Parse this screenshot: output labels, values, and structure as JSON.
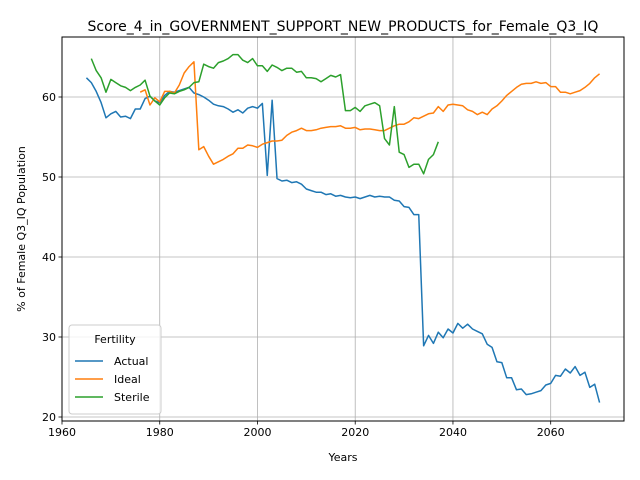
{
  "chart_data": {
    "type": "line",
    "title": "Score_4_in_GOVERNMENT_SUPPORT_NEW_PRODUCTS_for_Female_Q3_IQ",
    "xlabel": "Years",
    "ylabel": "% of Female Q3_IQ Population",
    "xlim": [
      1960,
      2075
    ],
    "ylim": [
      19.5,
      67.5
    ],
    "xticks": [
      1960,
      1980,
      2000,
      2020,
      2040,
      2060
    ],
    "yticks": [
      20,
      30,
      40,
      50,
      60
    ],
    "grid": true,
    "legend": {
      "title": "Fertility",
      "placement": "lower-left"
    },
    "series": [
      {
        "name": "Actual",
        "color": "#1f77b4",
        "points": [
          [
            1965,
            62.4
          ],
          [
            1966,
            61.8
          ],
          [
            1967,
            60.7
          ],
          [
            1968,
            59.3
          ],
          [
            1969,
            57.4
          ],
          [
            1970,
            57.9
          ],
          [
            1971,
            58.2
          ],
          [
            1972,
            57.5
          ],
          [
            1973,
            57.6
          ],
          [
            1974,
            57.3
          ],
          [
            1975,
            58.5
          ],
          [
            1976,
            58.5
          ],
          [
            1977,
            59.8
          ],
          [
            1978,
            60.1
          ],
          [
            1979,
            59.5
          ],
          [
            1980,
            59.3
          ],
          [
            1981,
            60.2
          ],
          [
            1982,
            60.7
          ],
          [
            1983,
            60.6
          ],
          [
            1984,
            60.8
          ],
          [
            1985,
            61.0
          ],
          [
            1986,
            61.2
          ],
          [
            1987,
            60.5
          ],
          [
            1988,
            60.3
          ],
          [
            1989,
            60.0
          ],
          [
            1990,
            59.6
          ],
          [
            1991,
            59.1
          ],
          [
            1992,
            58.9
          ],
          [
            1993,
            58.8
          ],
          [
            1994,
            58.5
          ],
          [
            1995,
            58.1
          ],
          [
            1996,
            58.4
          ],
          [
            1997,
            58.0
          ],
          [
            1998,
            58.6
          ],
          [
            1999,
            58.8
          ],
          [
            2000,
            58.6
          ],
          [
            2001,
            59.2
          ],
          [
            2002,
            50.2
          ],
          [
            2003,
            59.6
          ],
          [
            2004,
            49.8
          ],
          [
            2005,
            49.5
          ],
          [
            2006,
            49.6
          ],
          [
            2007,
            49.3
          ],
          [
            2008,
            49.4
          ],
          [
            2009,
            49.1
          ],
          [
            2010,
            48.5
          ],
          [
            2011,
            48.3
          ],
          [
            2012,
            48.1
          ],
          [
            2013,
            48.1
          ],
          [
            2014,
            47.8
          ],
          [
            2015,
            47.9
          ],
          [
            2016,
            47.6
          ],
          [
            2017,
            47.7
          ],
          [
            2018,
            47.5
          ],
          [
            2019,
            47.4
          ],
          [
            2020,
            47.5
          ],
          [
            2021,
            47.3
          ],
          [
            2022,
            47.5
          ],
          [
            2023,
            47.7
          ],
          [
            2024,
            47.5
          ],
          [
            2025,
            47.6
          ],
          [
            2026,
            47.5
          ],
          [
            2027,
            47.5
          ],
          [
            2028,
            47.1
          ],
          [
            2029,
            47.0
          ],
          [
            2030,
            46.3
          ],
          [
            2031,
            46.2
          ],
          [
            2032,
            45.3
          ],
          [
            2033,
            45.3
          ],
          [
            2034,
            28.9
          ],
          [
            2035,
            30.2
          ],
          [
            2036,
            29.2
          ],
          [
            2037,
            30.6
          ],
          [
            2038,
            29.9
          ],
          [
            2039,
            31.0
          ],
          [
            2040,
            30.5
          ],
          [
            2041,
            31.7
          ],
          [
            2042,
            31.1
          ],
          [
            2043,
            31.6
          ],
          [
            2044,
            31.0
          ],
          [
            2045,
            30.7
          ],
          [
            2046,
            30.4
          ],
          [
            2047,
            29.1
          ],
          [
            2048,
            28.7
          ],
          [
            2049,
            26.9
          ],
          [
            2050,
            26.8
          ],
          [
            2051,
            24.9
          ],
          [
            2052,
            24.9
          ],
          [
            2053,
            23.4
          ],
          [
            2054,
            23.5
          ],
          [
            2055,
            22.8
          ],
          [
            2056,
            22.9
          ],
          [
            2057,
            23.1
          ],
          [
            2058,
            23.3
          ],
          [
            2059,
            24.0
          ],
          [
            2060,
            24.2
          ],
          [
            2061,
            25.2
          ],
          [
            2062,
            25.1
          ],
          [
            2063,
            26.0
          ],
          [
            2064,
            25.5
          ],
          [
            2065,
            26.3
          ],
          [
            2066,
            25.2
          ],
          [
            2067,
            25.6
          ],
          [
            2068,
            23.7
          ],
          [
            2069,
            24.1
          ],
          [
            2070,
            21.8
          ]
        ]
      },
      {
        "name": "Ideal",
        "color": "#ff7f0e",
        "points": [
          [
            1976,
            60.6
          ],
          [
            1977,
            60.9
          ],
          [
            1978,
            59.0
          ],
          [
            1979,
            59.9
          ],
          [
            1980,
            59.4
          ],
          [
            1981,
            60.7
          ],
          [
            1982,
            60.7
          ],
          [
            1983,
            60.5
          ],
          [
            1984,
            61.5
          ],
          [
            1985,
            63.0
          ],
          [
            1986,
            63.8
          ],
          [
            1987,
            64.4
          ],
          [
            1988,
            53.4
          ],
          [
            1989,
            53.8
          ],
          [
            1990,
            52.6
          ],
          [
            1991,
            51.6
          ],
          [
            1992,
            51.9
          ],
          [
            1993,
            52.2
          ],
          [
            1994,
            52.6
          ],
          [
            1995,
            52.9
          ],
          [
            1996,
            53.6
          ],
          [
            1997,
            53.6
          ],
          [
            1998,
            54.0
          ],
          [
            1999,
            53.9
          ],
          [
            2000,
            53.7
          ],
          [
            2001,
            54.1
          ],
          [
            2002,
            54.3
          ],
          [
            2003,
            54.5
          ],
          [
            2004,
            54.5
          ],
          [
            2005,
            54.6
          ],
          [
            2006,
            55.2
          ],
          [
            2007,
            55.6
          ],
          [
            2008,
            55.8
          ],
          [
            2009,
            56.1
          ],
          [
            2010,
            55.8
          ],
          [
            2011,
            55.8
          ],
          [
            2012,
            55.9
          ],
          [
            2013,
            56.1
          ],
          [
            2014,
            56.2
          ],
          [
            2015,
            56.3
          ],
          [
            2016,
            56.3
          ],
          [
            2017,
            56.4
          ],
          [
            2018,
            56.1
          ],
          [
            2019,
            56.1
          ],
          [
            2020,
            56.2
          ],
          [
            2021,
            55.9
          ],
          [
            2022,
            56.0
          ],
          [
            2023,
            56.0
          ],
          [
            2024,
            55.9
          ],
          [
            2025,
            55.8
          ],
          [
            2026,
            55.8
          ],
          [
            2027,
            56.1
          ],
          [
            2028,
            56.4
          ],
          [
            2029,
            56.6
          ],
          [
            2030,
            56.6
          ],
          [
            2031,
            56.9
          ],
          [
            2032,
            57.4
          ],
          [
            2033,
            57.3
          ],
          [
            2034,
            57.6
          ],
          [
            2035,
            57.9
          ],
          [
            2036,
            58.0
          ],
          [
            2037,
            58.8
          ],
          [
            2038,
            58.2
          ],
          [
            2039,
            59.0
          ],
          [
            2040,
            59.1
          ],
          [
            2041,
            59.0
          ],
          [
            2042,
            58.9
          ],
          [
            2043,
            58.4
          ],
          [
            2044,
            58.2
          ],
          [
            2045,
            57.8
          ],
          [
            2046,
            58.1
          ],
          [
            2047,
            57.8
          ],
          [
            2048,
            58.5
          ],
          [
            2049,
            58.9
          ],
          [
            2050,
            59.5
          ],
          [
            2051,
            60.2
          ],
          [
            2052,
            60.7
          ],
          [
            2053,
            61.2
          ],
          [
            2054,
            61.6
          ],
          [
            2055,
            61.7
          ],
          [
            2056,
            61.7
          ],
          [
            2057,
            61.9
          ],
          [
            2058,
            61.7
          ],
          [
            2059,
            61.8
          ],
          [
            2060,
            61.3
          ],
          [
            2061,
            61.3
          ],
          [
            2062,
            60.6
          ],
          [
            2063,
            60.6
          ],
          [
            2064,
            60.4
          ],
          [
            2065,
            60.6
          ],
          [
            2066,
            60.8
          ],
          [
            2067,
            61.2
          ],
          [
            2068,
            61.7
          ],
          [
            2069,
            62.4
          ],
          [
            2070,
            62.9
          ]
        ]
      },
      {
        "name": "Sterile",
        "color": "#2ca02c",
        "points": [
          [
            1966,
            64.8
          ],
          [
            1967,
            63.3
          ],
          [
            1968,
            62.4
          ],
          [
            1969,
            60.6
          ],
          [
            1970,
            62.2
          ],
          [
            1971,
            61.8
          ],
          [
            1972,
            61.4
          ],
          [
            1973,
            61.2
          ],
          [
            1974,
            60.8
          ],
          [
            1975,
            61.2
          ],
          [
            1976,
            61.5
          ],
          [
            1977,
            62.1
          ],
          [
            1978,
            60.1
          ],
          [
            1979,
            59.5
          ],
          [
            1980,
            59.0
          ],
          [
            1981,
            59.9
          ],
          [
            1982,
            60.5
          ],
          [
            1983,
            60.4
          ],
          [
            1984,
            60.7
          ],
          [
            1985,
            60.9
          ],
          [
            1986,
            61.2
          ],
          [
            1987,
            61.8
          ],
          [
            1988,
            61.9
          ],
          [
            1989,
            64.1
          ],
          [
            1990,
            63.8
          ],
          [
            1991,
            63.6
          ],
          [
            1992,
            64.3
          ],
          [
            1993,
            64.5
          ],
          [
            1994,
            64.8
          ],
          [
            1995,
            65.3
          ],
          [
            1996,
            65.3
          ],
          [
            1997,
            64.6
          ],
          [
            1998,
            64.3
          ],
          [
            1999,
            64.8
          ],
          [
            2000,
            63.9
          ],
          [
            2001,
            63.9
          ],
          [
            2002,
            63.2
          ],
          [
            2003,
            64.0
          ],
          [
            2004,
            63.7
          ],
          [
            2005,
            63.3
          ],
          [
            2006,
            63.6
          ],
          [
            2007,
            63.6
          ],
          [
            2008,
            63.1
          ],
          [
            2009,
            63.2
          ],
          [
            2010,
            62.4
          ],
          [
            2011,
            62.4
          ],
          [
            2012,
            62.3
          ],
          [
            2013,
            61.9
          ],
          [
            2014,
            62.3
          ],
          [
            2015,
            62.7
          ],
          [
            2016,
            62.5
          ],
          [
            2017,
            62.8
          ],
          [
            2018,
            58.3
          ],
          [
            2019,
            58.3
          ],
          [
            2020,
            58.7
          ],
          [
            2021,
            58.2
          ],
          [
            2022,
            58.9
          ],
          [
            2023,
            59.1
          ],
          [
            2024,
            59.3
          ],
          [
            2025,
            58.9
          ],
          [
            2026,
            54.8
          ],
          [
            2027,
            54.0
          ],
          [
            2028,
            58.8
          ],
          [
            2029,
            53.1
          ],
          [
            2030,
            52.8
          ],
          [
            2031,
            51.2
          ],
          [
            2032,
            51.6
          ],
          [
            2033,
            51.6
          ],
          [
            2034,
            50.4
          ],
          [
            2035,
            52.2
          ],
          [
            2036,
            52.8
          ],
          [
            2037,
            54.4
          ]
        ]
      }
    ]
  }
}
